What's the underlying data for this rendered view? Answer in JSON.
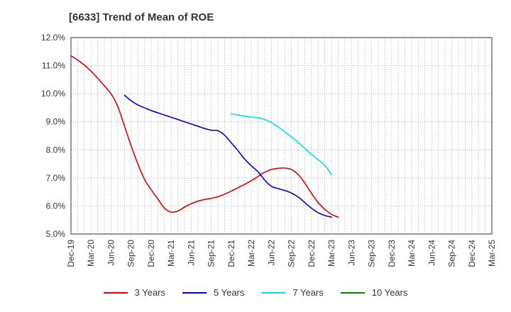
{
  "chart_data": {
    "type": "line",
    "title": "[6633]  Trend of Mean of ROE",
    "xlabel": "",
    "ylabel": "",
    "ylim": [
      5.0,
      12.0
    ],
    "y_ticks": [
      "5.0%",
      "6.0%",
      "7.0%",
      "8.0%",
      "9.0%",
      "10.0%",
      "11.0%",
      "12.0%"
    ],
    "x_ticks": [
      "Dec-19",
      "Mar-20",
      "Jun-20",
      "Sep-20",
      "Dec-20",
      "Mar-21",
      "Jun-21",
      "Sep-21",
      "Dec-21",
      "Mar-22",
      "Jun-22",
      "Sep-22",
      "Dec-22",
      "Mar-23",
      "Jun-23",
      "Sep-23",
      "Dec-23",
      "Mar-24",
      "Jun-24",
      "Sep-24",
      "Dec-24",
      "Mar-25"
    ],
    "grid": true,
    "legend_position": "bottom",
    "series": [
      {
        "name": "3 Years",
        "color": "#dd0000",
        "start_index": 0,
        "values": [
          11.35,
          11.2,
          11.02,
          10.8,
          10.55,
          10.28,
          10.0,
          9.55,
          8.85,
          8.15,
          7.5,
          6.95,
          6.58,
          6.25,
          5.92,
          5.78,
          5.82,
          5.96,
          6.08,
          6.17,
          6.23,
          6.27,
          6.33,
          6.42,
          6.53,
          6.65,
          6.77,
          6.9,
          7.05,
          7.2,
          7.3,
          7.34,
          7.35,
          7.3,
          7.12,
          6.82,
          6.45,
          6.12,
          5.88,
          5.7,
          5.6
        ]
      },
      {
        "name": "5 Years",
        "color": "#0000cc",
        "start_index": 8,
        "values": [
          9.95,
          9.75,
          9.6,
          9.5,
          9.4,
          9.32,
          9.24,
          9.16,
          9.08,
          9.0,
          8.92,
          8.84,
          8.76,
          8.7,
          8.68,
          8.52,
          8.25,
          7.97,
          7.67,
          7.43,
          7.22,
          6.92,
          6.7,
          6.62,
          6.55,
          6.46,
          6.32,
          6.12,
          5.92,
          5.76,
          5.66,
          5.6
        ]
      },
      {
        "name": "7 Years",
        "color": "#00e0e0",
        "start_index": 24,
        "values": [
          9.28,
          9.24,
          9.2,
          9.17,
          9.14,
          9.08,
          8.97,
          8.82,
          8.64,
          8.46,
          8.27,
          8.05,
          7.84,
          7.65,
          7.45,
          7.12
        ]
      },
      {
        "name": "10 Years",
        "color": "#008000",
        "start_index": 0,
        "values": []
      }
    ]
  }
}
